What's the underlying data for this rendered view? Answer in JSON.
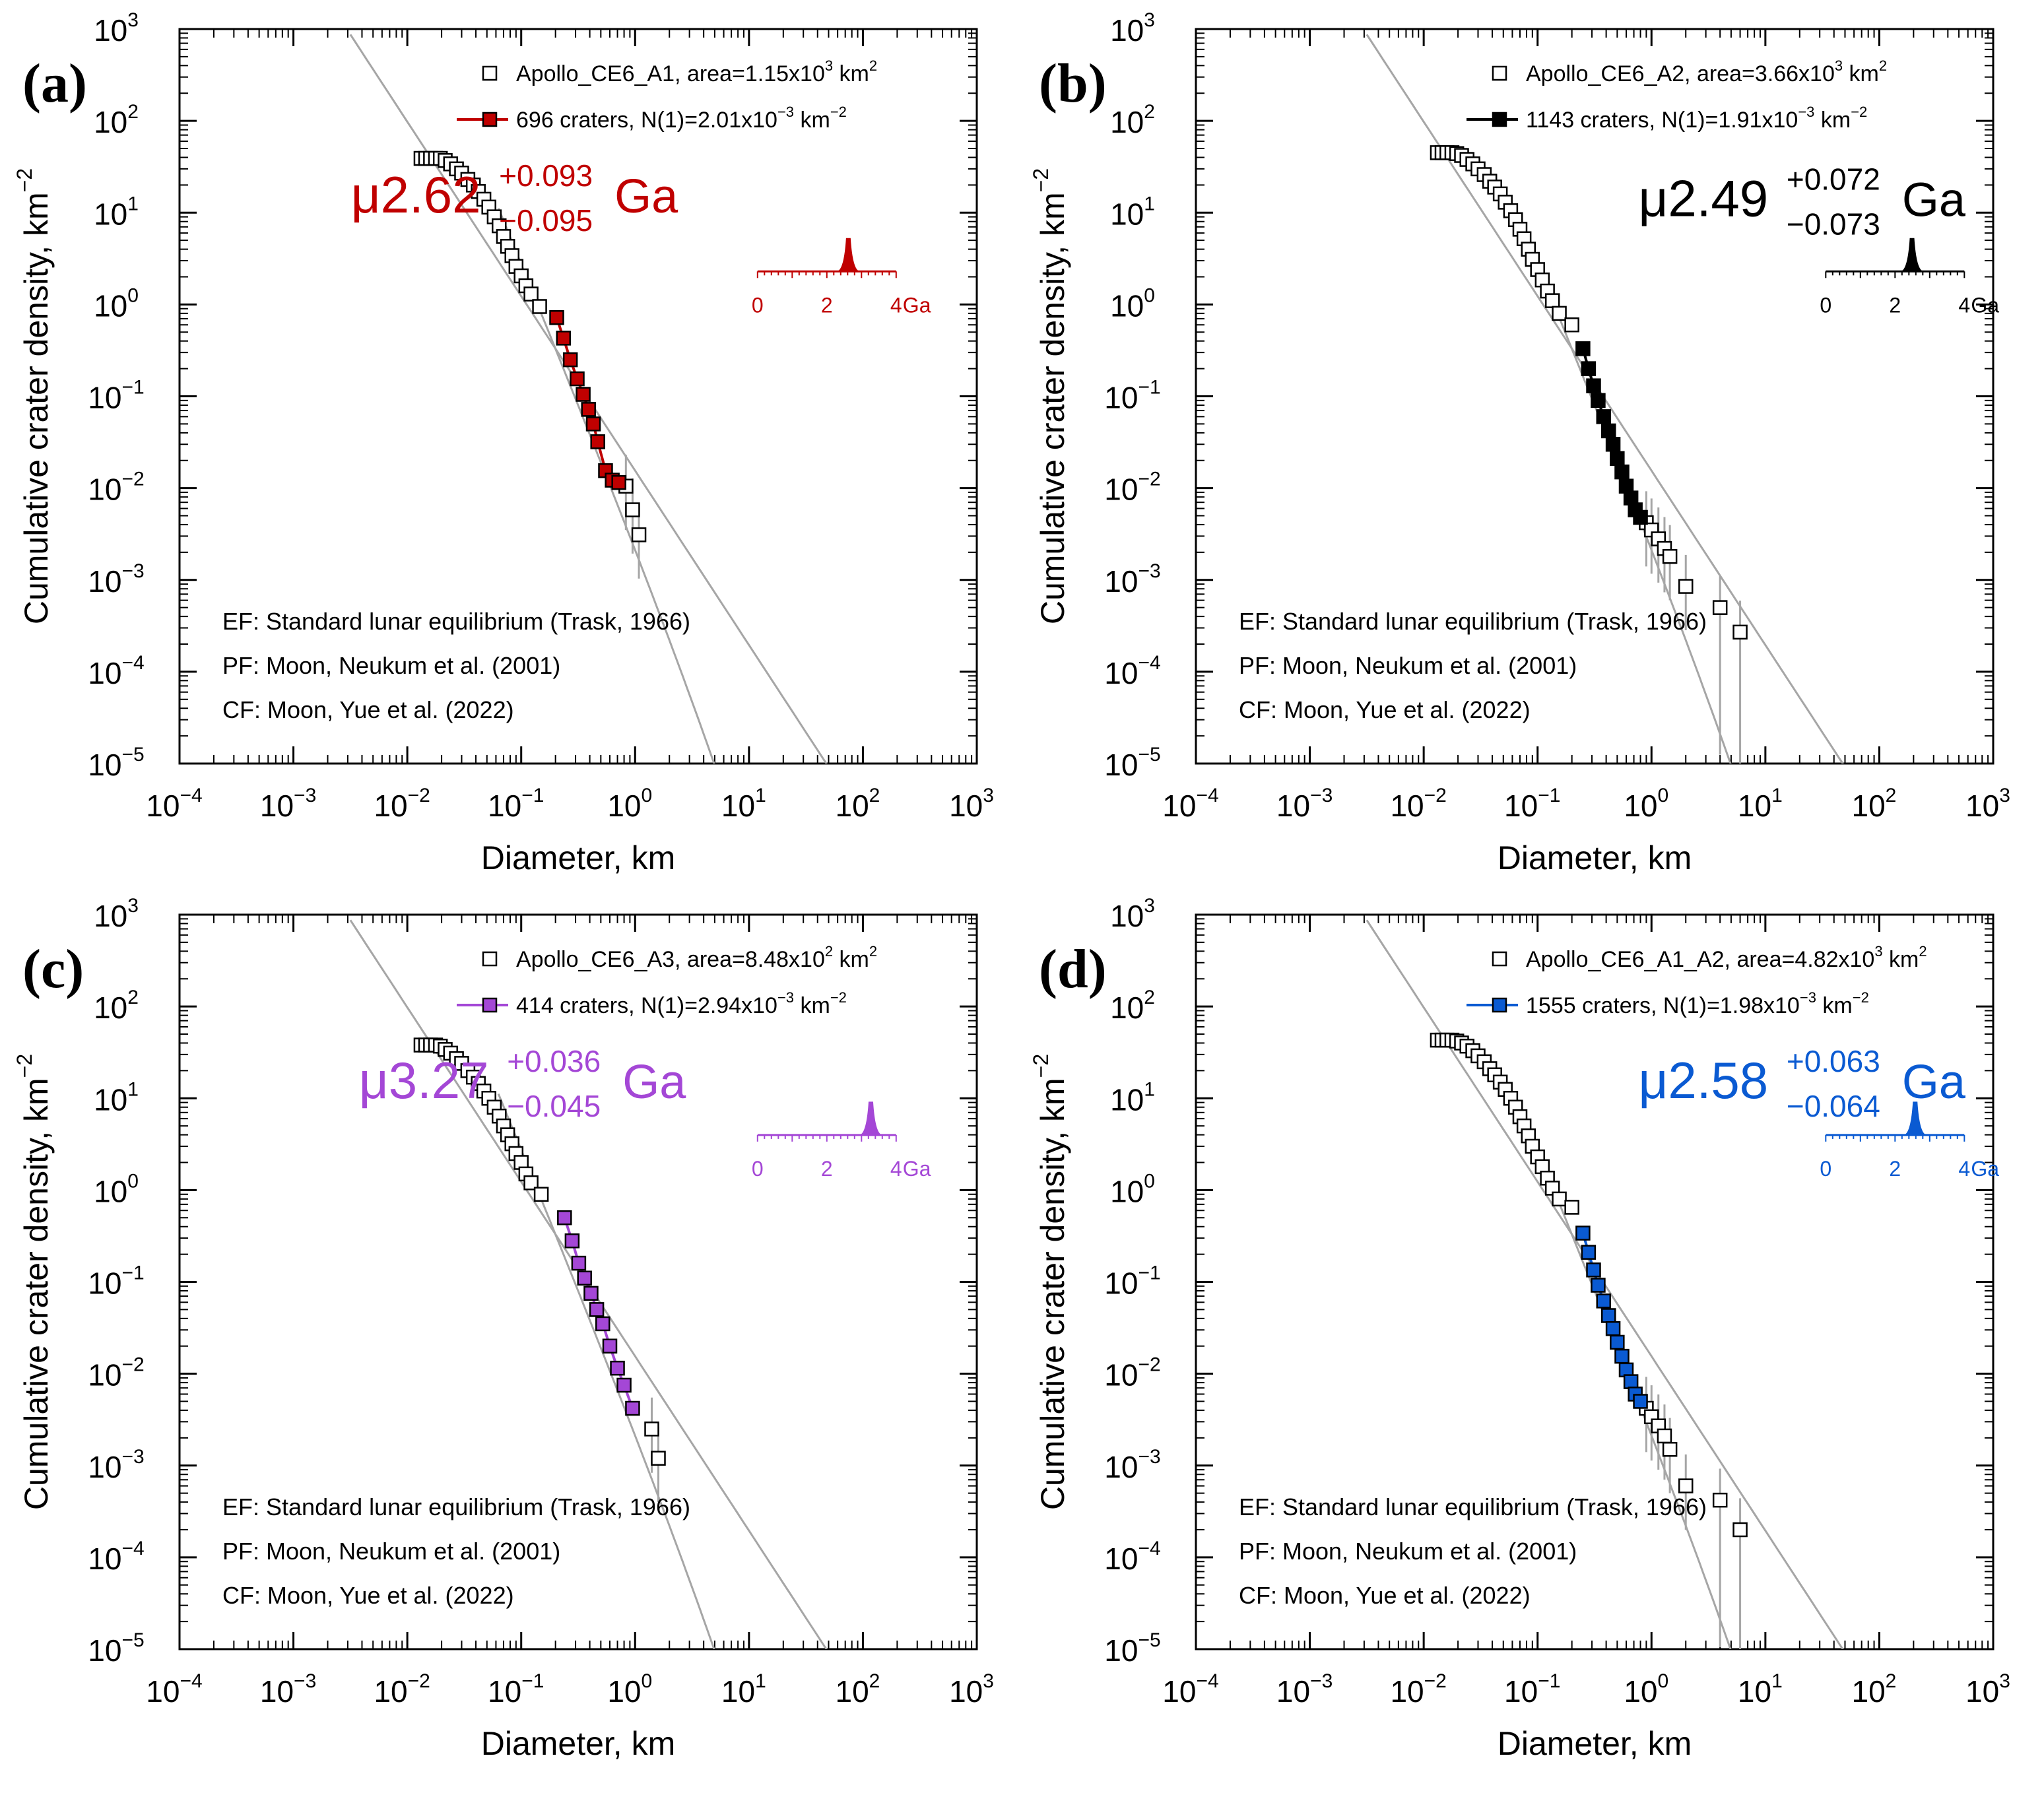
{
  "figure": {
    "xlabel": "Diameter, km",
    "ylabel": "Cumulative crater density, km",
    "ylabel_exp": "−2",
    "age_axis_unit": "Ga"
  },
  "chart_data": [
    {
      "type": "scatter",
      "panel_label": "(a)",
      "color": "#c00000",
      "xscale": "log",
      "yscale": "log",
      "xlim": [
        0.0001,
        1000
      ],
      "ylim": [
        1e-05,
        1000
      ],
      "xticks": [
        "10",
        "10",
        "10",
        "10",
        "10",
        "10",
        "10",
        "10"
      ],
      "xtick_exps": [
        "−4",
        "−3",
        "−2",
        "−1",
        "0",
        "1",
        "2",
        "3"
      ],
      "yticks": [
        "10",
        "10",
        "10",
        "10",
        "10",
        "10",
        "10",
        "10",
        "10"
      ],
      "ytick_exps": [
        "−5",
        "−4",
        "−3",
        "−2",
        "−1",
        "0",
        "1",
        "2",
        "3"
      ],
      "legend": [
        {
          "text": "Apollo_CE6_A1, area=1.15x10",
          "exp": "3",
          "unit": " km",
          "unit_exp": "2"
        },
        {
          "text": "696 craters, N(1)=2.01x10",
          "exp": "−3",
          "unit": " km",
          "unit_exp": "−2"
        }
      ],
      "age": {
        "prefix": "μ",
        "value": "2.62",
        "plus": "+0.093",
        "minus": "−0.095",
        "unit": "Ga"
      },
      "age_ticks": [
        "0",
        "2",
        "4"
      ],
      "age_peak": 2.62,
      "annotations": [
        "EF: Standard lunar equilibrium (Trask, 1966)",
        "PF: Moon, Neukum et al. (2001)",
        "CF: Moon, Yue et al. (2022)"
      ],
      "open_points": {
        "x": [
          0.0132,
          0.0145,
          0.016,
          0.0177,
          0.0195,
          0.0215,
          0.024,
          0.027,
          0.03,
          0.034,
          0.038,
          0.042,
          0.047,
          0.052,
          0.058,
          0.064,
          0.07,
          0.076,
          0.083,
          0.09,
          0.1,
          0.11,
          0.122,
          0.145,
          0.83,
          0.95,
          1.08
        ],
        "y": [
          39,
          39,
          39,
          39,
          39,
          37,
          34,
          30,
          27,
          23,
          20,
          17,
          14,
          11.5,
          9,
          7.2,
          5.5,
          4.3,
          3.4,
          2.6,
          2.05,
          1.6,
          1.3,
          0.95,
          0.0105,
          0.0058,
          0.0031
        ]
      },
      "fit_points": {
        "x": [
          0.205,
          0.235,
          0.27,
          0.31,
          0.35,
          0.39,
          0.43,
          0.47,
          0.55,
          0.63,
          0.72
        ],
        "y": [
          0.72,
          0.43,
          0.25,
          0.155,
          0.105,
          0.072,
          0.05,
          0.032,
          0.0155,
          0.0122,
          0.0115
        ]
      },
      "fit_range": [
        0.2,
        0.75
      ]
    },
    {
      "type": "scatter",
      "panel_label": "(b)",
      "color": "#000000",
      "xscale": "log",
      "yscale": "log",
      "xlim": [
        0.0001,
        1000
      ],
      "ylim": [
        1e-05,
        1000
      ],
      "xticks": [
        "10",
        "10",
        "10",
        "10",
        "10",
        "10",
        "10",
        "10"
      ],
      "xtick_exps": [
        "−4",
        "−3",
        "−2",
        "−1",
        "0",
        "1",
        "2",
        "3"
      ],
      "yticks": [
        "10",
        "10",
        "10",
        "10",
        "10",
        "10",
        "10",
        "10",
        "10"
      ],
      "ytick_exps": [
        "−5",
        "−4",
        "−3",
        "−2",
        "−1",
        "0",
        "1",
        "2",
        "3"
      ],
      "legend": [
        {
          "text": "Apollo_CE6_A2, area=3.66x10",
          "exp": "3",
          "unit": " km",
          "unit_exp": "2"
        },
        {
          "text": "1143 craters, N(1)=1.91x10",
          "exp": "−3",
          "unit": " km",
          "unit_exp": "−2"
        }
      ],
      "age": {
        "prefix": "μ",
        "value": "2.49",
        "plus": "+0.072",
        "minus": "−0.073",
        "unit": "Ga"
      },
      "age_ticks": [
        "0",
        "2",
        "4"
      ],
      "age_peak": 2.49,
      "annotations": [
        "EF: Standard lunar equilibrium (Trask, 1966)",
        "PF: Moon, Neukum et al. (2001)",
        "CF: Moon, Yue et al. (2022)"
      ],
      "open_points": {
        "x": [
          0.0132,
          0.0145,
          0.016,
          0.0177,
          0.0195,
          0.0215,
          0.024,
          0.027,
          0.03,
          0.034,
          0.038,
          0.042,
          0.047,
          0.052,
          0.058,
          0.064,
          0.07,
          0.076,
          0.083,
          0.09,
          0.1,
          0.11,
          0.122,
          0.135,
          0.155,
          0.2,
          0.9,
          1.0,
          1.15,
          1.3,
          1.45,
          2.0,
          4.0,
          6.0
        ],
        "y": [
          45,
          45,
          45,
          45,
          44,
          42,
          38,
          34,
          30,
          26,
          22,
          19,
          16,
          13,
          10.5,
          8.4,
          6.6,
          5.2,
          4.0,
          3.1,
          2.4,
          1.85,
          1.4,
          1.1,
          0.8,
          0.6,
          0.0042,
          0.0035,
          0.0028,
          0.0022,
          0.0018,
          0.00085,
          0.0005,
          0.00027
        ]
      },
      "fit_points": {
        "x": [
          0.25,
          0.28,
          0.31,
          0.34,
          0.38,
          0.42,
          0.46,
          0.5,
          0.55,
          0.6,
          0.66,
          0.72,
          0.8
        ],
        "y": [
          0.33,
          0.2,
          0.13,
          0.09,
          0.06,
          0.042,
          0.03,
          0.021,
          0.015,
          0.0105,
          0.0078,
          0.0058,
          0.0048
        ]
      },
      "fit_range": [
        0.25,
        0.85
      ]
    },
    {
      "type": "scatter",
      "panel_label": "(c)",
      "color": "#a447d6",
      "xscale": "log",
      "yscale": "log",
      "xlim": [
        0.0001,
        1000
      ],
      "ylim": [
        1e-05,
        1000
      ],
      "xticks": [
        "10",
        "10",
        "10",
        "10",
        "10",
        "10",
        "10",
        "10"
      ],
      "xtick_exps": [
        "−4",
        "−3",
        "−2",
        "−1",
        "0",
        "1",
        "2",
        "3"
      ],
      "yticks": [
        "10",
        "10",
        "10",
        "10",
        "10",
        "10",
        "10",
        "10",
        "10"
      ],
      "ytick_exps": [
        "−5",
        "−4",
        "−3",
        "−2",
        "−1",
        "0",
        "1",
        "2",
        "3"
      ],
      "legend": [
        {
          "text": "Apollo_CE6_A3, area=8.48x10",
          "exp": "2",
          "unit": " km",
          "unit_exp": "2"
        },
        {
          "text": "414 craters, N(1)=2.94x10",
          "exp": "−3",
          "unit": " km",
          "unit_exp": "−2"
        }
      ],
      "age": {
        "prefix": "μ",
        "value": "3.27",
        "plus": "+0.036",
        "minus": "−0.045",
        "unit": "Ga"
      },
      "age_ticks": [
        "0",
        "2",
        "4"
      ],
      "age_peak": 3.27,
      "annotations": [
        "EF: Standard lunar equilibrium (Trask, 1966)",
        "PF: Moon, Neukum et al. (2001)",
        "CF: Moon, Yue et al. (2022)"
      ],
      "open_points": {
        "x": [
          0.0132,
          0.0145,
          0.016,
          0.0177,
          0.0195,
          0.0215,
          0.024,
          0.027,
          0.03,
          0.034,
          0.038,
          0.042,
          0.047,
          0.052,
          0.058,
          0.064,
          0.07,
          0.076,
          0.083,
          0.09,
          0.1,
          0.11,
          0.122,
          0.15,
          1.4,
          1.6
        ],
        "y": [
          38,
          38,
          38,
          38,
          37,
          34,
          31,
          27,
          24,
          20,
          17,
          14.5,
          12,
          10,
          8,
          6.4,
          5.0,
          4.0,
          3.2,
          2.5,
          2.0,
          1.5,
          1.2,
          0.9,
          0.0025,
          0.0012
        ]
      },
      "fit_points": {
        "x": [
          0.24,
          0.28,
          0.32,
          0.36,
          0.41,
          0.46,
          0.52,
          0.6,
          0.7,
          0.8,
          0.95
        ],
        "y": [
          0.5,
          0.28,
          0.16,
          0.11,
          0.075,
          0.05,
          0.035,
          0.02,
          0.0115,
          0.0075,
          0.0042
        ]
      },
      "fit_range": [
        0.22,
        1.05
      ]
    },
    {
      "type": "scatter",
      "panel_label": "(d)",
      "color": "#0a5ad2",
      "xscale": "log",
      "yscale": "log",
      "xlim": [
        0.0001,
        1000
      ],
      "ylim": [
        1e-05,
        1000
      ],
      "xticks": [
        "10",
        "10",
        "10",
        "10",
        "10",
        "10",
        "10",
        "10"
      ],
      "xtick_exps": [
        "−4",
        "−3",
        "−2",
        "−1",
        "0",
        "1",
        "2",
        "3"
      ],
      "yticks": [
        "10",
        "10",
        "10",
        "10",
        "10",
        "10",
        "10",
        "10",
        "10"
      ],
      "ytick_exps": [
        "−5",
        "−4",
        "−3",
        "−2",
        "−1",
        "0",
        "1",
        "2",
        "3"
      ],
      "legend": [
        {
          "text": "Apollo_CE6_A1_A2, area=4.82x10",
          "exp": "3",
          "unit": " km",
          "unit_exp": "2"
        },
        {
          "text": "1555 craters, N(1)=1.98x10",
          "exp": "−3",
          "unit": " km",
          "unit_exp": "−2"
        }
      ],
      "age": {
        "prefix": "μ",
        "value": "2.58",
        "plus": "+0.063",
        "minus": "−0.064",
        "unit": "Ga"
      },
      "age_ticks": [
        "0",
        "2",
        "4"
      ],
      "age_peak": 2.58,
      "annotations": [
        "EF: Standard lunar equilibrium (Trask, 1966)",
        "PF: Moon, Neukum et al. (2001)",
        "CF: Moon, Yue et al. (2022)"
      ],
      "open_points": {
        "x": [
          0.0132,
          0.0145,
          0.016,
          0.0177,
          0.0195,
          0.0215,
          0.024,
          0.027,
          0.03,
          0.034,
          0.038,
          0.042,
          0.047,
          0.052,
          0.058,
          0.064,
          0.07,
          0.076,
          0.083,
          0.09,
          0.1,
          0.11,
          0.122,
          0.135,
          0.155,
          0.2,
          0.9,
          1.0,
          1.15,
          1.3,
          1.45,
          2.0,
          4.0,
          6.0
        ],
        "y": [
          43,
          43,
          43,
          43,
          42,
          40,
          37,
          33,
          29,
          25,
          21,
          18,
          15,
          12.5,
          10,
          8.0,
          6.3,
          5.0,
          3.9,
          3.0,
          2.3,
          1.8,
          1.35,
          1.05,
          0.8,
          0.65,
          0.0042,
          0.0034,
          0.0027,
          0.0021,
          0.0015,
          0.0006,
          0.00042,
          0.0002
        ]
      },
      "fit_points": {
        "x": [
          0.25,
          0.28,
          0.31,
          0.34,
          0.38,
          0.42,
          0.46,
          0.5,
          0.55,
          0.6,
          0.66,
          0.72,
          0.8
        ],
        "y": [
          0.34,
          0.21,
          0.135,
          0.092,
          0.062,
          0.043,
          0.031,
          0.022,
          0.0155,
          0.011,
          0.0082,
          0.006,
          0.005
        ]
      },
      "fit_range": [
        0.25,
        0.85
      ]
    }
  ]
}
